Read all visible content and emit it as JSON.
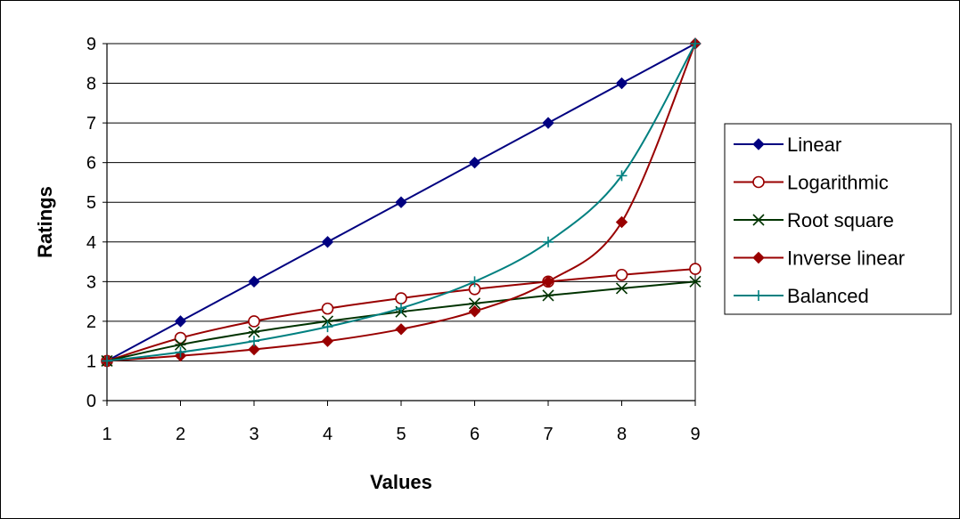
{
  "chart_data": {
    "type": "line",
    "title": "",
    "xlabel": "Values",
    "ylabel": "Ratings",
    "x": [
      1,
      2,
      3,
      4,
      5,
      6,
      7,
      8,
      9
    ],
    "xlim": [
      1,
      9
    ],
    "ylim": [
      0,
      9
    ],
    "x_ticks": [
      "1",
      "2",
      "3",
      "4",
      "5",
      "6",
      "7",
      "8",
      "9"
    ],
    "y_ticks": [
      "0",
      "1",
      "2",
      "3",
      "4",
      "5",
      "6",
      "7",
      "8",
      "9"
    ],
    "grid": "horizontal",
    "legend_position": "right",
    "series": [
      {
        "name": "Linear",
        "color": "#000080",
        "marker": "diamond-filled",
        "values": [
          1,
          2,
          3,
          4,
          5,
          6,
          7,
          8,
          9
        ]
      },
      {
        "name": "Logarithmic",
        "color": "#990000",
        "marker": "circle-open",
        "values": [
          1,
          1.58,
          2,
          2.32,
          2.58,
          2.81,
          3,
          3.17,
          3.32
        ]
      },
      {
        "name": "Root square",
        "color": "#003300",
        "marker": "star",
        "values": [
          1,
          1.41,
          1.73,
          2,
          2.24,
          2.45,
          2.65,
          2.83,
          3
        ]
      },
      {
        "name": "Inverse linear",
        "color": "#990000",
        "marker": "diamond-filled",
        "values": [
          1,
          1.13,
          1.29,
          1.5,
          1.8,
          2.25,
          3,
          4.5,
          9
        ]
      },
      {
        "name": "Balanced",
        "color": "#008080",
        "marker": "plus",
        "values": [
          1,
          1.22,
          1.5,
          1.86,
          2.33,
          3,
          4,
          5.67,
          9
        ]
      }
    ]
  }
}
